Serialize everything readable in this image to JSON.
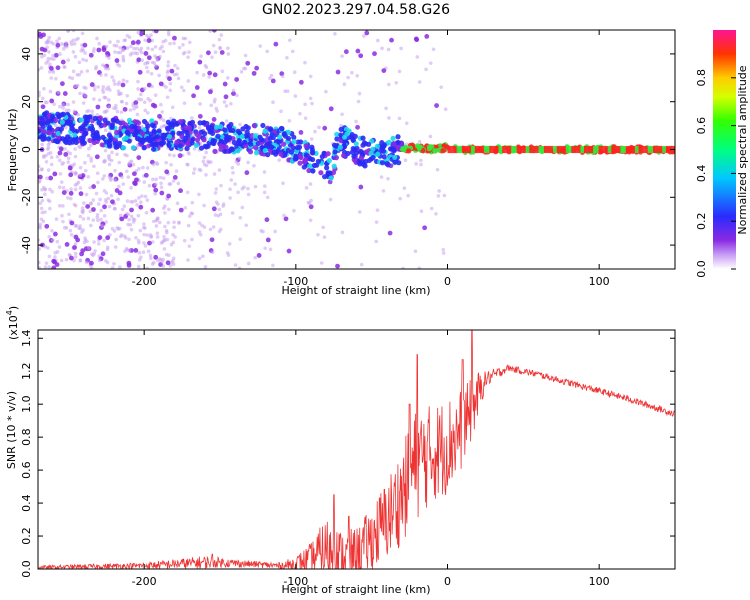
{
  "title": "GN02.2023.297.04.58.G26",
  "colors": {
    "snr_line": "#ee3333",
    "dot_light": "#c9a3f0",
    "dot_purple": "#8a2be2",
    "dot_blue": "#2a2af5",
    "dot_cyan": "#18d8e8",
    "dot_green": "#36e83a",
    "dot_red": "#ff2020"
  },
  "chart_data": [
    {
      "type": "scatter",
      "name": "spectrogram",
      "xlabel": "Height of straight line (km)",
      "ylabel": "Frequency (Hz)",
      "xlim": [
        -270,
        150
      ],
      "ylim": [
        -50,
        50
      ],
      "x_ticks": [
        -200,
        -100,
        0,
        100
      ],
      "y_ticks": [
        40,
        20,
        0,
        -20,
        -40
      ],
      "x_tick_labels": [
        "-200",
        "-100",
        "0",
        "100"
      ],
      "y_tick_labels": [
        "40",
        "20",
        "0",
        "-20",
        "-40"
      ],
      "grid": false,
      "colorbar": {
        "label": "Normalized spectral amplitude",
        "range": [
          0,
          1
        ],
        "ticks": [
          0.0,
          0.2,
          0.4,
          0.6,
          0.8
        ],
        "tick_labels": [
          "0.0",
          "0.2",
          "0.4",
          "0.6",
          "0.8"
        ]
      },
      "ridge": {
        "x": [
          -270,
          -240,
          -200,
          -170,
          -150,
          -130,
          -110,
          -100,
          -90,
          -80,
          -75,
          -72,
          -70,
          -60,
          -50,
          -40,
          -30,
          -20,
          -10,
          0,
          10,
          30,
          60,
          100,
          150
        ],
        "freq_hz": [
          10,
          8,
          6,
          6,
          5,
          5,
          3,
          0,
          -4,
          -8,
          -6,
          5,
          4,
          0,
          -2,
          -1,
          0,
          1,
          0,
          1,
          0,
          0,
          0,
          0,
          0
        ]
      }
    },
    {
      "type": "line",
      "name": "snr",
      "xlabel": "Height of straight line (km)",
      "ylabel": "SNR (10 * v/v)",
      "y_multiplier": "(x10",
      "y_multiplier_exp": "4",
      "y_multiplier_close": ")",
      "xlim": [
        -270,
        150
      ],
      "ylim": [
        0,
        1.45
      ],
      "x_ticks": [
        -200,
        -100,
        0,
        100
      ],
      "y_ticks": [
        0.0,
        0.2,
        0.4,
        0.6,
        0.8,
        1.0,
        1.2,
        1.4
      ],
      "x_tick_labels": [
        "-200",
        "-100",
        "0",
        "100"
      ],
      "y_tick_labels": [
        "0.0",
        "0.2",
        "0.4",
        "0.6",
        "0.8",
        "1.0",
        "1.2",
        "1.4"
      ],
      "grid": false,
      "envelope": {
        "x": [
          -270,
          -200,
          -180,
          -160,
          -150,
          -130,
          -110,
          -100,
          -90,
          -80,
          -70,
          -60,
          -50,
          -40,
          -30,
          -20,
          -10,
          0,
          10,
          20,
          25,
          40,
          60,
          80,
          100,
          120,
          150
        ],
        "base": [
          0.01,
          0.02,
          0.03,
          0.04,
          0.04,
          0.03,
          0.02,
          0.03,
          0.06,
          0.12,
          0.08,
          0.1,
          0.18,
          0.3,
          0.45,
          0.65,
          0.7,
          0.75,
          0.85,
          1.05,
          1.15,
          1.22,
          1.18,
          1.13,
          1.08,
          1.03,
          0.94
        ],
        "spread": [
          0.01,
          0.02,
          0.03,
          0.04,
          0.03,
          0.02,
          0.02,
          0.05,
          0.1,
          0.2,
          0.15,
          0.15,
          0.2,
          0.25,
          0.3,
          0.35,
          0.3,
          0.3,
          0.25,
          0.15,
          0.05,
          0.02,
          0.02,
          0.02,
          0.02,
          0.02,
          0.02
        ]
      },
      "peaks": [
        {
          "x": -155,
          "y": 0.09
        },
        {
          "x": -75,
          "y": 0.45
        },
        {
          "x": -65,
          "y": 0.32
        },
        {
          "x": -25,
          "y": 1.0
        },
        {
          "x": -20,
          "y": 1.3
        },
        {
          "x": 10,
          "y": 1.27
        },
        {
          "x": 16,
          "y": 1.45
        }
      ]
    }
  ]
}
